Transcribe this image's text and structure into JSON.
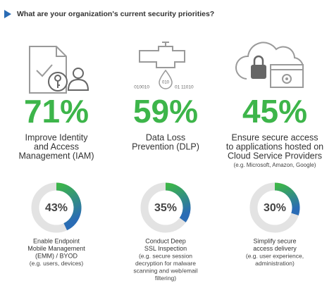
{
  "header": {
    "title": "What are your organization's current security priorities?"
  },
  "icon_texts": [
    "010010",
    "010",
    "01 11010"
  ],
  "top_stats": [
    {
      "value": 71,
      "value_label": "71%",
      "lines": [
        "Improve Identity",
        "and Access",
        "Management (IAM)"
      ],
      "note": []
    },
    {
      "value": 59,
      "value_label": "59%",
      "lines": [
        "Data Loss",
        "Prevention (DLP)"
      ],
      "note": []
    },
    {
      "value": 45,
      "value_label": "45%",
      "lines": [
        "Ensure secure access",
        "to applications hosted on",
        "Cloud Service Providers"
      ],
      "note": [
        "(e.g. Microsoft, Amazon, Google)"
      ]
    }
  ],
  "donut_stats": [
    {
      "value": 43,
      "value_label": "43%",
      "lines": [
        "Enable Endpoint",
        "Mobile Management",
        "(EMM) / BYOD"
      ],
      "note": [
        "(e.g. users, devices)"
      ]
    },
    {
      "value": 35,
      "value_label": "35%",
      "lines": [
        "Conduct Deep",
        "SSL Inspection"
      ],
      "note": [
        "(e.g. secure session",
        "decryption for malware",
        "scanning and web/email",
        "filtering)"
      ]
    },
    {
      "value": 30,
      "value_label": "30%",
      "lines": [
        "Simplify secure",
        "access delivery"
      ],
      "note": [
        "(e.g. user experience,",
        "administration)"
      ]
    }
  ]
}
